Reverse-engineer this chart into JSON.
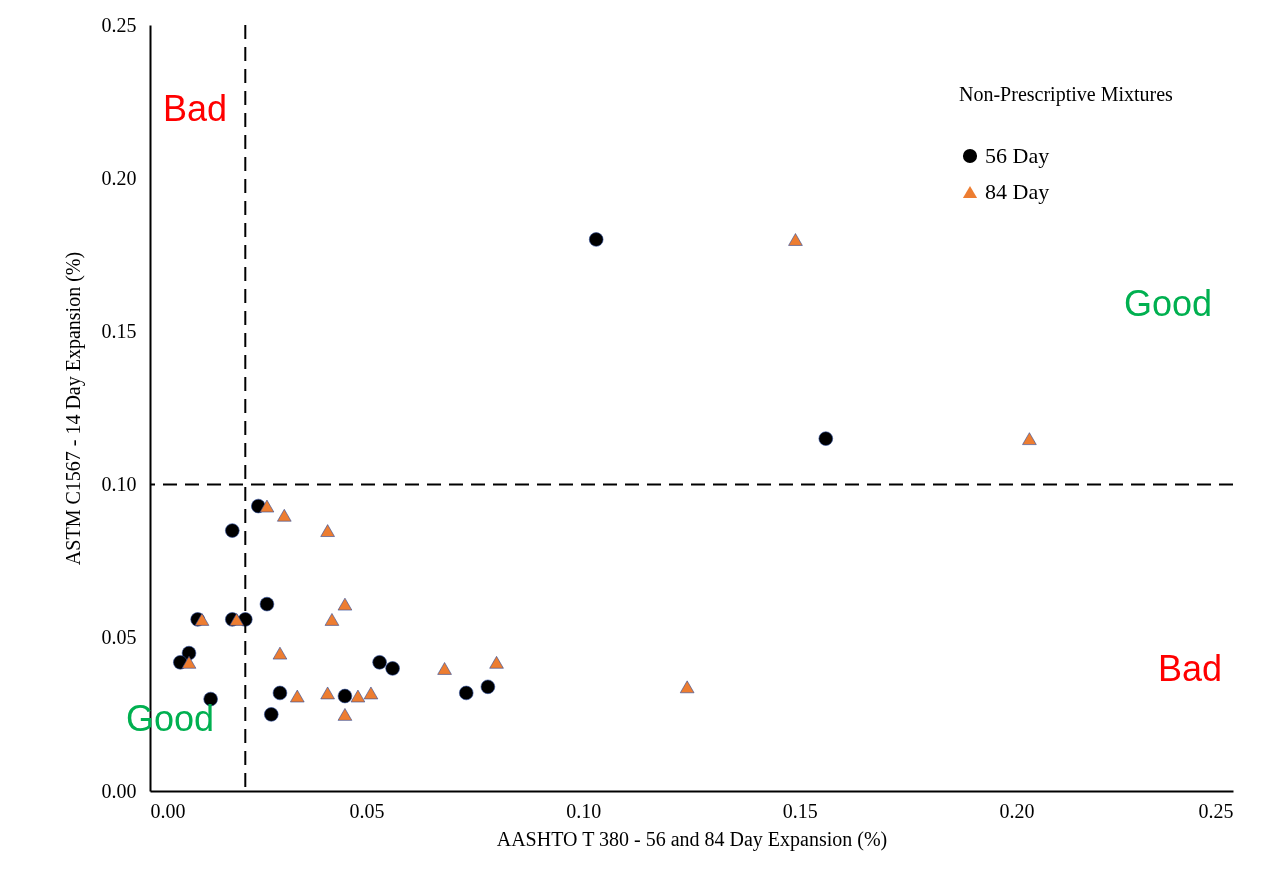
{
  "chart_data": {
    "type": "scatter",
    "xlabel": "AASHTO T 380 - 56 and 84 Day Expansion (%)",
    "ylabel": "ASTM C1567 - 14 Day Expansion (%)",
    "legend_title": "Non-Prescriptive Mixtures",
    "legend": "top right",
    "grid": false,
    "xlim": [
      0,
      0.25
    ],
    "xticks": [
      {
        "value": 0,
        "label": "0.00"
      },
      {
        "value": 0.05,
        "label": "0.05"
      },
      {
        "value": 0.1,
        "label": "0.10"
      },
      {
        "value": 0.15,
        "label": "0.15"
      },
      {
        "value": 0.2,
        "label": "0.20"
      },
      {
        "value": 0.25,
        "label": "0.25"
      }
    ],
    "ylim": [
      0,
      0.25
    ],
    "yticks": [
      {
        "value": 0,
        "label": "0.00"
      },
      {
        "value": 0.05,
        "label": "0.05"
      },
      {
        "value": 0.1,
        "label": "0.10"
      },
      {
        "value": 0.15,
        "label": "0.15"
      },
      {
        "value": 0.2,
        "label": "0.20"
      },
      {
        "value": 0.25,
        "label": "0.25"
      }
    ],
    "series": [
      {
        "name": "56 Day",
        "color": "#000000",
        "marker": "circle",
        "x": [
          0.025,
          0.019,
          0.027,
          0.011,
          0.019,
          0.022,
          0.009,
          0.007,
          0.014,
          0.028,
          0.03,
          0.045,
          0.053,
          0.056,
          0.073,
          0.078,
          0.103,
          0.156
        ],
        "values": [
          0.093,
          0.085,
          0.061,
          0.056,
          0.056,
          0.056,
          0.045,
          0.042,
          0.03,
          0.025,
          0.032,
          0.031,
          0.042,
          0.04,
          0.032,
          0.034,
          0.18,
          0.115
        ]
      },
      {
        "name": "84 Day",
        "color": "#ed7d31",
        "marker": "triangle",
        "x": [
          0.027,
          0.031,
          0.041,
          0.045,
          0.042,
          0.012,
          0.02,
          0.03,
          0.009,
          0.034,
          0.041,
          0.045,
          0.048,
          0.051,
          0.068,
          0.08,
          0.124,
          0.149,
          0.203
        ],
        "values": [
          0.093,
          0.09,
          0.085,
          0.061,
          0.056,
          0.056,
          0.056,
          0.045,
          0.042,
          0.031,
          0.032,
          0.025,
          0.031,
          0.032,
          0.04,
          0.042,
          0.034,
          0.18,
          0.115
        ]
      }
    ],
    "ref_lines": [
      {
        "axis": "x",
        "value": 0.022,
        "line_style": "dashed",
        "color": "#000000"
      },
      {
        "axis": "y",
        "value": 0.1,
        "line_style": "dashed",
        "color": "#000000"
      }
    ],
    "annotations": [
      "Bad",
      "Good",
      "Bad",
      "Good"
    ]
  }
}
